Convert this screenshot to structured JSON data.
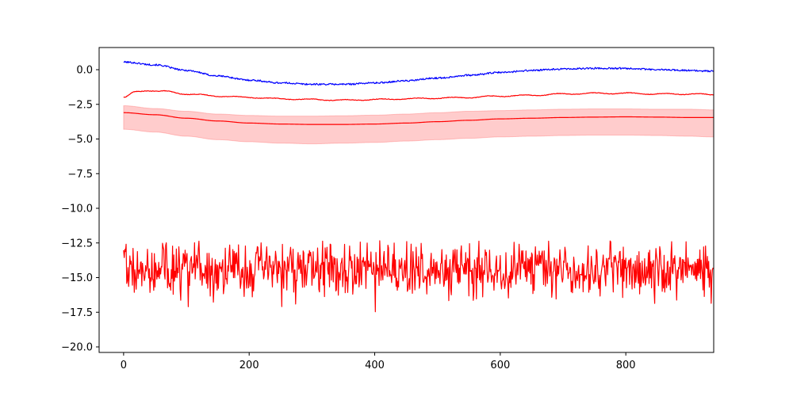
{
  "chart_data": {
    "type": "line",
    "xlim": [
      -39,
      940
    ],
    "ylim": [
      -20.4,
      1.6
    ],
    "x_ticks": [
      0,
      200,
      400,
      600,
      800
    ],
    "x_tick_labels": [
      "0",
      "200",
      "400",
      "600",
      "800"
    ],
    "y_ticks": [
      0,
      -2.5,
      -5,
      -7.5,
      -10,
      -12.5,
      -15,
      -17.5,
      -20
    ],
    "y_tick_labels": [
      "0.0",
      "−2.5",
      "−5.0",
      "−7.5",
      "−10.0",
      "−12.5",
      "−15.0",
      "−17.5",
      "−20.0"
    ],
    "grid": false,
    "legend": null,
    "colors": {
      "blue_series": "#0000ff",
      "red_series": "#ff0000",
      "band_fill": "#ff0000"
    },
    "series": [
      {
        "color": "#0000ff",
        "style": "noisy",
        "noise_amplitude": 0.06,
        "x": [
          0,
          50,
          100,
          150,
          200,
          250,
          300,
          350,
          400,
          450,
          500,
          550,
          600,
          650,
          700,
          750,
          800,
          850,
          940
        ],
        "values": [
          0.55,
          0.35,
          -0.05,
          -0.45,
          -0.75,
          -0.95,
          -1.05,
          -1.05,
          -0.95,
          -0.8,
          -0.6,
          -0.4,
          -0.2,
          -0.05,
          0.05,
          0.1,
          0.1,
          0.0,
          -0.1
        ]
      },
      {
        "color": "#ff0000",
        "style": "wavy",
        "noise_amplitude": 0.04,
        "x": [
          0,
          20,
          40,
          60,
          100,
          150,
          200,
          250,
          300,
          350,
          400,
          450,
          500,
          550,
          600,
          650,
          700,
          750,
          800,
          850,
          900,
          940
        ],
        "values": [
          -2.0,
          -1.6,
          -1.5,
          -1.55,
          -1.75,
          -1.9,
          -2.0,
          -2.1,
          -2.15,
          -2.2,
          -2.15,
          -2.1,
          -2.05,
          -2.0,
          -1.9,
          -1.85,
          -1.75,
          -1.7,
          -1.7,
          -1.75,
          -1.75,
          -1.8
        ]
      },
      {
        "color": "#ff0000",
        "style": "smooth_with_band",
        "x": [
          0,
          50,
          100,
          150,
          200,
          250,
          300,
          350,
          400,
          450,
          500,
          550,
          600,
          650,
          700,
          750,
          800,
          850,
          900,
          940
        ],
        "values": [
          -3.1,
          -3.25,
          -3.5,
          -3.7,
          -3.85,
          -3.92,
          -3.95,
          -3.95,
          -3.92,
          -3.85,
          -3.75,
          -3.65,
          -3.55,
          -3.5,
          -3.45,
          -3.42,
          -3.4,
          -3.42,
          -3.45,
          -3.45
        ],
        "upper": [
          -2.6,
          -2.8,
          -3.0,
          -3.2,
          -3.3,
          -3.35,
          -3.35,
          -3.32,
          -3.28,
          -3.2,
          -3.1,
          -3.0,
          -2.95,
          -2.9,
          -2.85,
          -2.83,
          -2.83,
          -2.85,
          -2.85,
          -2.9
        ],
        "lower": [
          -4.3,
          -4.5,
          -4.8,
          -5.05,
          -5.2,
          -5.3,
          -5.35,
          -5.3,
          -5.25,
          -5.15,
          -5.05,
          -4.95,
          -4.85,
          -4.8,
          -4.75,
          -4.72,
          -4.72,
          -4.75,
          -4.8,
          -4.85
        ]
      },
      {
        "color": "#ff0000",
        "style": "random",
        "n_points": 940,
        "mean": -14.4,
        "std": 0.95,
        "min": -19.5,
        "max": -12.3,
        "seed": 7
      }
    ]
  }
}
